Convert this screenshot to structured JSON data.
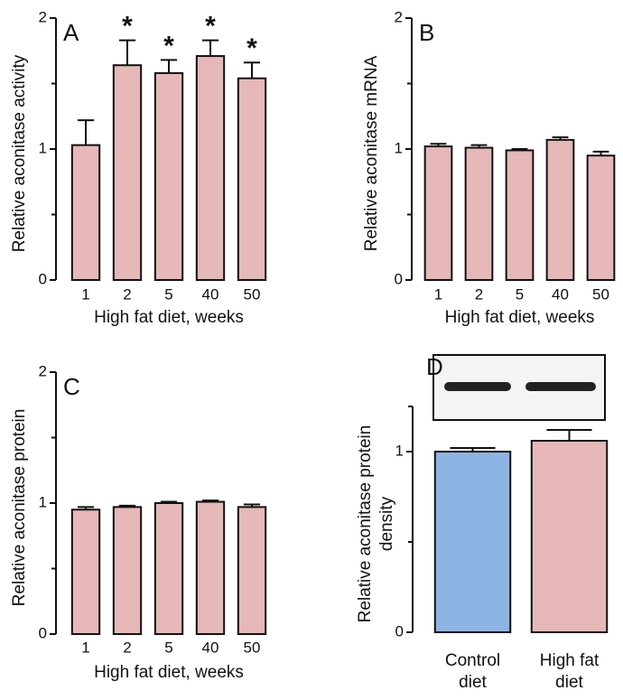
{
  "chart_data": [
    {
      "type": "bar",
      "panel_label": "A",
      "ylabel": "Relative aconitase activity",
      "xlabel": "High fat diet, weeks",
      "categories": [
        "1",
        "2",
        "5",
        "40",
        "50"
      ],
      "series": [
        {
          "color": "#e6b8b8",
          "values": [
            1.03,
            1.64,
            1.58,
            1.71,
            1.54
          ],
          "errors": [
            0.19,
            0.19,
            0.1,
            0.12,
            0.12
          ]
        }
      ],
      "significance": [
        null,
        "*",
        "*",
        "*",
        "*"
      ],
      "ylim": [
        0,
        2
      ],
      "yticks": [
        0,
        1,
        2
      ],
      "minor_yticks": [
        0.5,
        1.5
      ]
    },
    {
      "type": "bar",
      "panel_label": "B",
      "ylabel": "Relative aconitase mRNA",
      "xlabel": "High fat diet, weeks",
      "categories": [
        "1",
        "2",
        "5",
        "40",
        "50"
      ],
      "series": [
        {
          "color": "#e6b8b8",
          "values": [
            1.02,
            1.01,
            0.99,
            1.07,
            0.95
          ],
          "errors": [
            0.02,
            0.02,
            0.01,
            0.02,
            0.03
          ]
        }
      ],
      "ylim": [
        0,
        2
      ],
      "yticks": [
        0,
        1,
        2
      ],
      "minor_yticks": [
        0.5,
        1.5
      ]
    },
    {
      "type": "bar",
      "panel_label": "C",
      "ylabel": "Relative aconitase protein",
      "xlabel": "High fat diet, weeks",
      "categories": [
        "1",
        "2",
        "5",
        "40",
        "50"
      ],
      "series": [
        {
          "color": "#e6b8b8",
          "values": [
            0.95,
            0.97,
            1.0,
            1.01,
            0.97
          ],
          "errors": [
            0.02,
            0.01,
            0.01,
            0.01,
            0.02
          ]
        }
      ],
      "ylim": [
        0,
        2
      ],
      "yticks": [
        0,
        1,
        2
      ],
      "minor_yticks": [
        0.5,
        1.5
      ]
    },
    {
      "type": "bar",
      "panel_label": "D",
      "ylabel": "Relative aconitase protein\ndensity",
      "categories": [
        "Control\ndiet",
        "High fat\ndiet"
      ],
      "series": [
        {
          "colors": [
            "#8eb4e3",
            "#e6b8b8"
          ],
          "values": [
            1.0,
            1.06
          ],
          "errors": [
            0.02,
            0.06
          ]
        }
      ],
      "ylim": [
        0,
        1.25
      ],
      "yticks": [
        0,
        1
      ],
      "minor_yticks": [
        0.5,
        1.25
      ]
    }
  ]
}
